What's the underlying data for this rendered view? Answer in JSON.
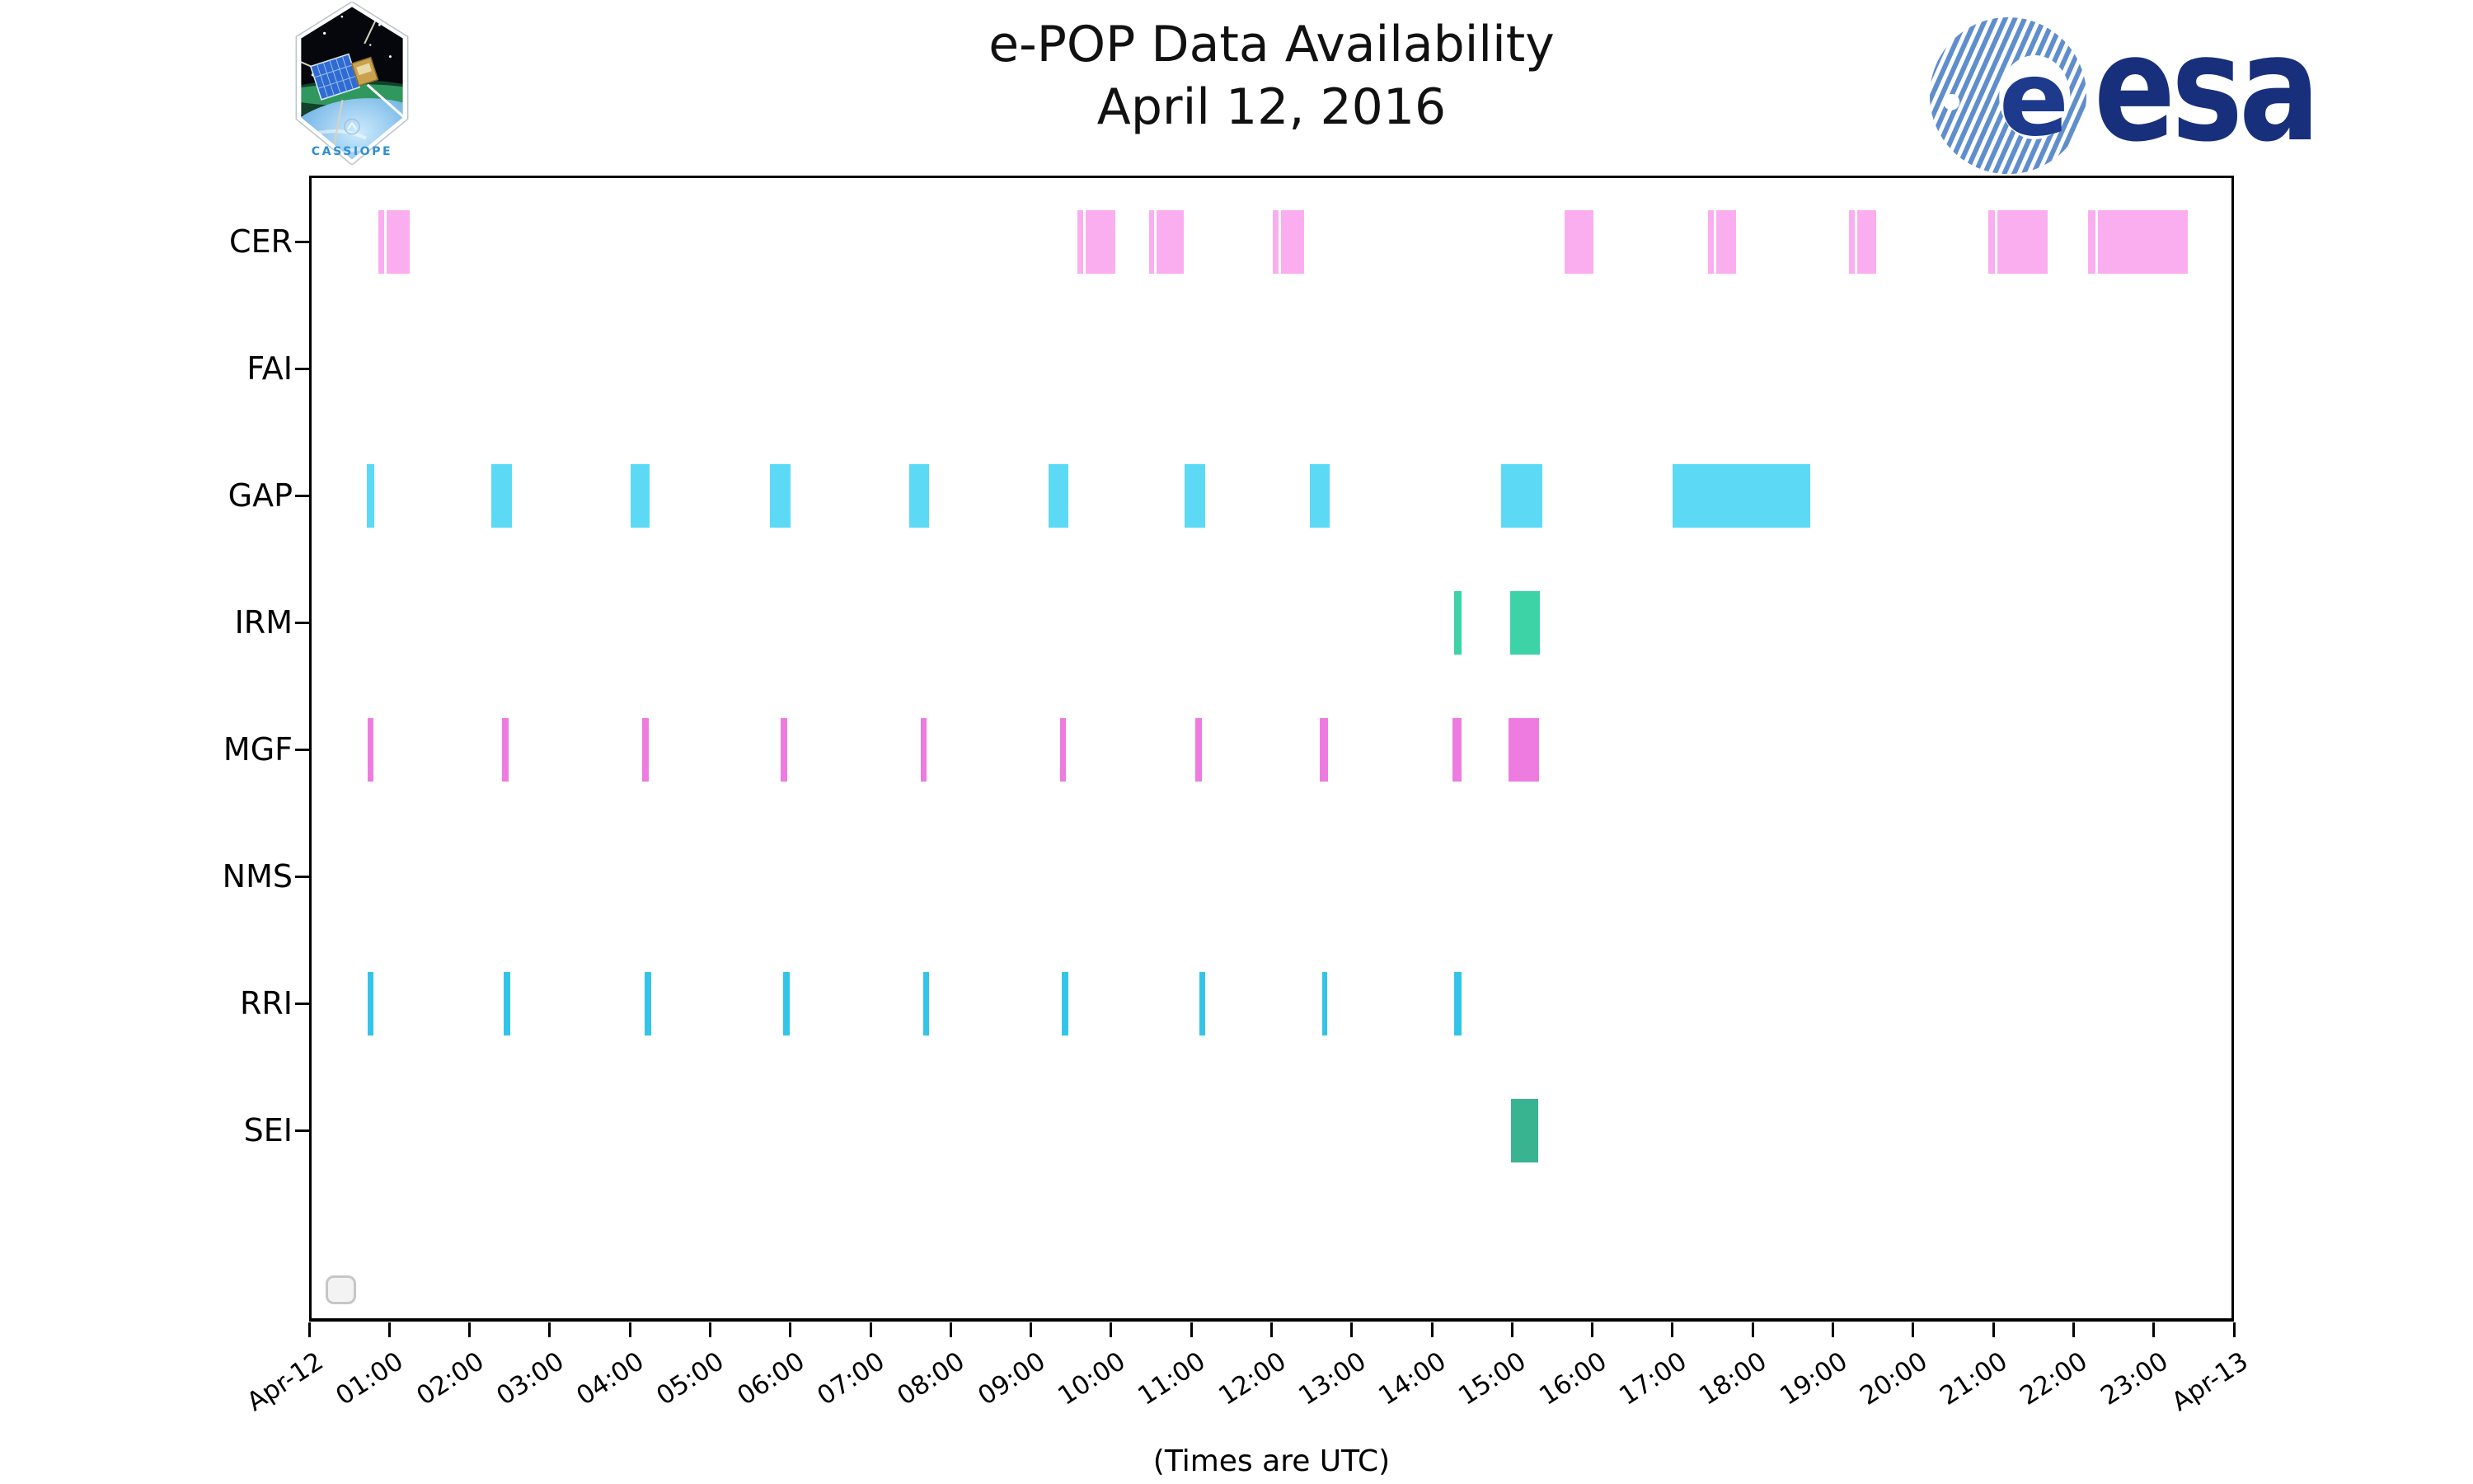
{
  "header": {
    "title_line1": "e-POP Data Availability",
    "title_line2": "April 12, 2016",
    "cassiope_patch_text": "CASSIOPE",
    "esa_logo_text": "esa"
  },
  "footer": {
    "x_axis_caption": "(Times are UTC)"
  },
  "icons": {
    "top_left": "cassiope-mission-patch",
    "top_right": "esa-logo-globe",
    "bottom_left": "empty-rounded-square-button"
  },
  "chart_data": {
    "type": "broken_barh",
    "title": "e-POP Data Availability",
    "subtitle": "April 12, 2016",
    "xlabel": "(Times are UTC)",
    "x_axis": {
      "hours_span": 24,
      "tick_labels": [
        "Apr-12",
        "01:00",
        "02:00",
        "03:00",
        "04:00",
        "05:00",
        "06:00",
        "07:00",
        "08:00",
        "09:00",
        "10:00",
        "11:00",
        "12:00",
        "13:00",
        "14:00",
        "15:00",
        "16:00",
        "17:00",
        "18:00",
        "19:00",
        "20:00",
        "21:00",
        "22:00",
        "23:00",
        "Apr-13"
      ]
    },
    "segments_unit": "decimal hours UTC on 2016-04-12",
    "rows": [
      {
        "label": "CER",
        "color": "#faaeef",
        "segments": [
          [
            0.86,
            0.94
          ],
          [
            0.97,
            1.25
          ],
          [
            9.58,
            9.65
          ],
          [
            9.68,
            10.05
          ],
          [
            10.47,
            10.54
          ],
          [
            10.57,
            10.91
          ],
          [
            12.01,
            12.09
          ],
          [
            12.12,
            12.41
          ],
          [
            15.65,
            16.01
          ],
          [
            17.44,
            17.51
          ],
          [
            17.54,
            17.79
          ],
          [
            19.2,
            19.27
          ],
          [
            19.3,
            19.54
          ],
          [
            20.94,
            21.02
          ],
          [
            21.05,
            21.68
          ],
          [
            22.18,
            22.27
          ],
          [
            22.3,
            23.43
          ]
        ]
      },
      {
        "label": "FAI",
        "color": "",
        "segments": []
      },
      {
        "label": "GAP",
        "color": "#5cdaf5",
        "segments": [
          [
            0.72,
            0.81
          ],
          [
            2.27,
            2.53
          ],
          [
            4.01,
            4.25
          ],
          [
            5.74,
            6.0
          ],
          [
            7.48,
            7.73
          ],
          [
            9.22,
            9.47
          ],
          [
            10.92,
            11.17
          ],
          [
            12.48,
            12.72
          ],
          [
            14.86,
            15.38
          ],
          [
            17.0,
            18.72
          ]
        ]
      },
      {
        "label": "IRM",
        "color": "#3dd3a6",
        "segments": [
          [
            14.28,
            14.37
          ],
          [
            14.97,
            15.34
          ]
        ]
      },
      {
        "label": "MGF",
        "color": "#ee7ce0",
        "segments": [
          [
            0.73,
            0.8
          ],
          [
            2.4,
            2.49
          ],
          [
            4.15,
            4.23
          ],
          [
            5.88,
            5.96
          ],
          [
            7.63,
            7.7
          ],
          [
            9.36,
            9.44
          ],
          [
            11.05,
            11.13
          ],
          [
            12.6,
            12.7
          ],
          [
            14.26,
            14.37
          ],
          [
            14.95,
            15.34
          ]
        ]
      },
      {
        "label": "NMS",
        "color": "",
        "segments": []
      },
      {
        "label": "RRI",
        "color": "#33c5e9",
        "segments": [
          [
            0.73,
            0.8
          ],
          [
            2.43,
            2.51
          ],
          [
            4.18,
            4.27
          ],
          [
            5.91,
            5.99
          ],
          [
            7.66,
            7.73
          ],
          [
            9.38,
            9.47
          ],
          [
            11.1,
            11.17
          ],
          [
            12.63,
            12.69
          ],
          [
            14.28,
            14.37
          ]
        ]
      },
      {
        "label": "SEI",
        "color": "#38b491",
        "segments": [
          [
            14.99,
            15.33
          ]
        ]
      }
    ]
  }
}
